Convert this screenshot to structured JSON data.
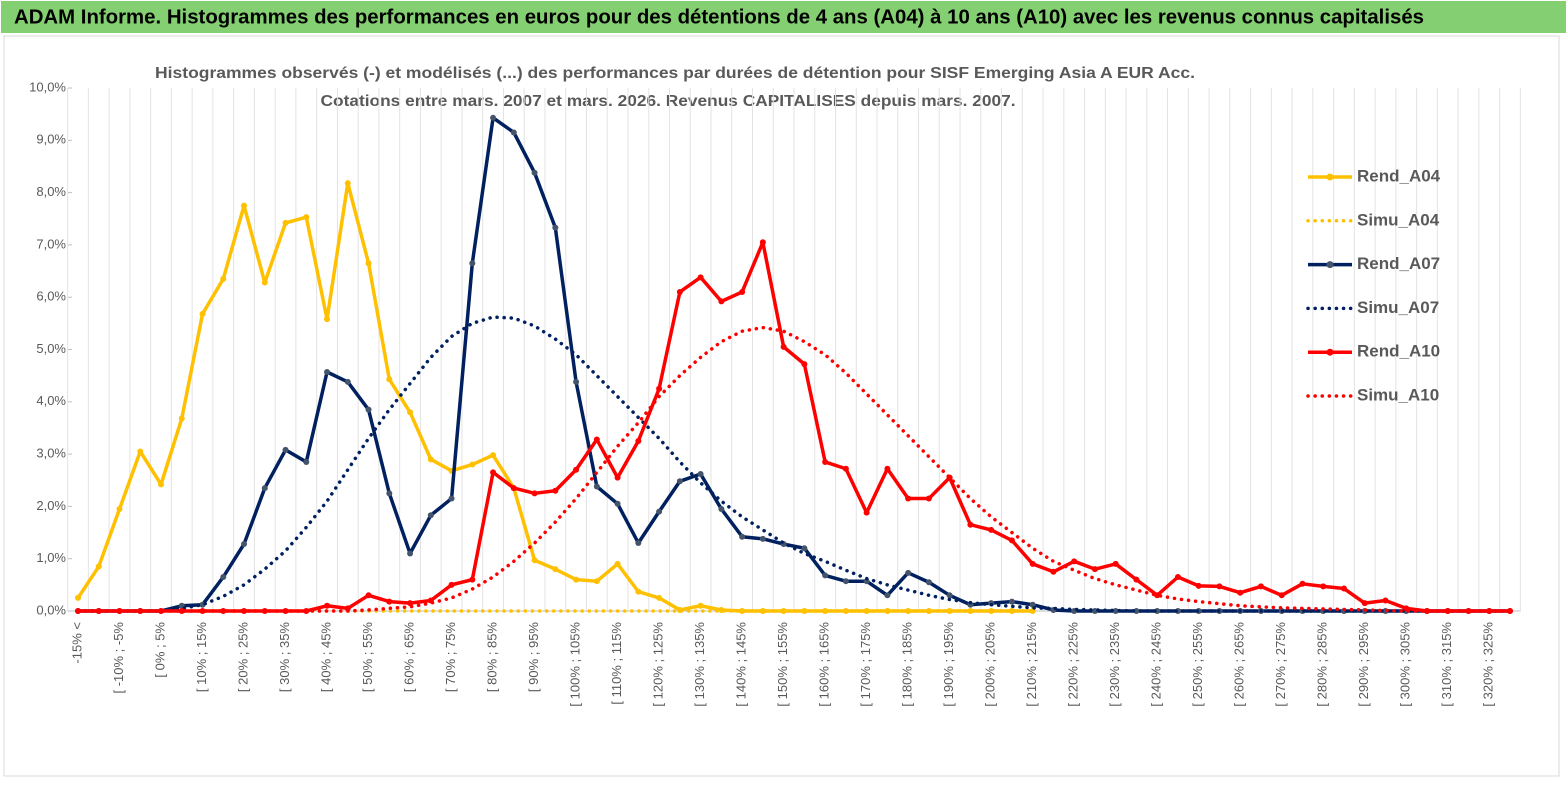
{
  "chart_data": {
    "type": "line",
    "title": "ADAM Informe. Histogrammes des performances en euros pour des détentions de 4 ans (A04) à 10 ans (A10) avec les revenus connus capitalisés",
    "subtitle": [
      "Histogrammes observés (-) et modélisés (...) des performances par durées de détention pour SISF Emerging Asia A EUR Acc.",
      "Cotations entre mars. 2007 et mars. 2026. Revenus CAPITALISES depuis mars. 2007."
    ],
    "categories": [
      "-15% <",
      null,
      "[ -10% ; -5%",
      null,
      "[ 0% ; 5%",
      null,
      "[ 10% ; 15%",
      null,
      "[ 20% ; 25%",
      null,
      "[ 30% ; 35%",
      null,
      "[ 40% ; 45%",
      null,
      "[ 50% ; 55%",
      null,
      "[ 60% ; 65%",
      null,
      "[ 70% ; 75%",
      null,
      "[ 80% ; 85%",
      null,
      "[ 90% ; 95%",
      null,
      "[ 100% ; 105%",
      null,
      "[ 110% ; 115%",
      null,
      "[ 120% ; 125%",
      null,
      "[ 130% ; 135%",
      null,
      "[ 140% ; 145%",
      null,
      "[ 150% ; 155%",
      null,
      "[ 160% ; 165%",
      null,
      "[ 170% ; 175%",
      null,
      "[ 180% ; 185%",
      null,
      "[ 190% ; 195%",
      null,
      "[ 200% ; 205%",
      null,
      "[ 210% ; 215%",
      null,
      "[ 220% ; 225%",
      null,
      "[ 230% ; 235%",
      null,
      "[ 240% ; 245%",
      null,
      "[ 250% ; 255%",
      null,
      "[ 260% ; 265%",
      null,
      "[ 270% ; 275%",
      null,
      "[ 280% ; 285%",
      null,
      "[ 290% ; 295%",
      null,
      "[ 300% ; 305%",
      null,
      "[ 310% ; 315%",
      null,
      "[ 320% ; 325%",
      null
    ],
    "ylim": [
      0,
      10
    ],
    "yticks": [
      {
        "value": 0,
        "label": "0,0%"
      },
      {
        "value": 1,
        "label": "1,0%"
      },
      {
        "value": 2,
        "label": "2,0%"
      },
      {
        "value": 3,
        "label": "3,0%"
      },
      {
        "value": 4,
        "label": "4,0%"
      },
      {
        "value": 5,
        "label": "5,0%"
      },
      {
        "value": 6,
        "label": "6,0%"
      },
      {
        "value": 7,
        "label": "7,0%"
      },
      {
        "value": 8,
        "label": "8,0%"
      },
      {
        "value": 9,
        "label": "9,0%"
      },
      {
        "value": 10,
        "label": "10,0%"
      }
    ],
    "x_grid": true,
    "legend": "right",
    "series": [
      {
        "name": "Rend_A04",
        "color": "#ffc000",
        "marker": true,
        "dash": "solid",
        "values": [
          0.25,
          0.85,
          1.95,
          3.05,
          2.42,
          3.68,
          5.68,
          6.35,
          7.75,
          6.28,
          7.42,
          7.53,
          5.58,
          8.18,
          6.65,
          4.43,
          3.8,
          2.9,
          2.68,
          2.8,
          2.98,
          2.35,
          0.97,
          0.8,
          0.6,
          0.57,
          0.9,
          0.37,
          0.25,
          0.02,
          0.1,
          0.02,
          0,
          0,
          0,
          0,
          0,
          0,
          0,
          0,
          0,
          0,
          0,
          0,
          0,
          0,
          0,
          null,
          null,
          null,
          null,
          null,
          null,
          null,
          null,
          null,
          null,
          null,
          null,
          null,
          null,
          null,
          null,
          null,
          null,
          null,
          null,
          null,
          null,
          null
        ]
      },
      {
        "name": "Simu_A04",
        "color": "#ffc000",
        "marker": false,
        "dash": "dot",
        "values": [
          0,
          0,
          0,
          0,
          0,
          0,
          0,
          0,
          0,
          0,
          0,
          0,
          0,
          0,
          0,
          0,
          0,
          0,
          0,
          0,
          0,
          0,
          0,
          0,
          0,
          0,
          0,
          0,
          0,
          0,
          0,
          0,
          0,
          0,
          0,
          0,
          0,
          0,
          0,
          0,
          0,
          0,
          0,
          0,
          0,
          0,
          0,
          null,
          null,
          null,
          null,
          null,
          null,
          null,
          null,
          null,
          null,
          null,
          null,
          null,
          null,
          null,
          null,
          null,
          null,
          null,
          null,
          null,
          null,
          null
        ]
      },
      {
        "name": "Rend_A07",
        "color": "#002060",
        "marker": true,
        "marker_color": "#44546a",
        "dash": "solid",
        "values": [
          0,
          0,
          0,
          0,
          0,
          0.1,
          0.12,
          0.65,
          1.28,
          2.35,
          3.08,
          2.85,
          4.57,
          4.38,
          3.85,
          2.25,
          1.1,
          1.83,
          2.15,
          6.65,
          9.43,
          9.15,
          8.38,
          7.33,
          4.38,
          2.38,
          2.05,
          1.3,
          1.9,
          2.48,
          2.62,
          1.95,
          1.42,
          1.38,
          1.28,
          1.2,
          0.68,
          0.57,
          0.57,
          0.3,
          0.73,
          0.55,
          0.3,
          0.12,
          0.15,
          0.18,
          0.12,
          0.02,
          0,
          0,
          0,
          0,
          0,
          0,
          0,
          0,
          0,
          0,
          0,
          0,
          0,
          0,
          0,
          0,
          0,
          0,
          0,
          0,
          0,
          0
        ]
      },
      {
        "name": "Simu_A07",
        "color": "#002060",
        "marker": false,
        "dash": "dot",
        "values": [
          0,
          0,
          0,
          0,
          0,
          0.05,
          0.12,
          0.28,
          0.5,
          0.8,
          1.15,
          1.6,
          2.1,
          2.7,
          3.3,
          3.85,
          4.35,
          4.85,
          5.25,
          5.5,
          5.62,
          5.6,
          5.45,
          5.2,
          4.9,
          4.5,
          4.1,
          3.7,
          3.3,
          2.85,
          2.45,
          2.1,
          1.8,
          1.55,
          1.3,
          1.1,
          0.95,
          0.78,
          0.62,
          0.5,
          0.4,
          0.3,
          0.22,
          0.16,
          0.12,
          0.09,
          0.06,
          0.05,
          0.03,
          0.02,
          0.01,
          0,
          0,
          0,
          0,
          0,
          0,
          0,
          0,
          0,
          0,
          0,
          0,
          0,
          0,
          0,
          0,
          0,
          0,
          0
        ]
      },
      {
        "name": "Rend_A10",
        "color": "#ff0000",
        "marker": true,
        "dash": "solid",
        "values": [
          0,
          0,
          0,
          0,
          0,
          0,
          0,
          0,
          0,
          0,
          0,
          0,
          0.1,
          0.05,
          0.3,
          0.18,
          0.15,
          0.2,
          0.5,
          0.6,
          2.65,
          2.35,
          2.25,
          2.3,
          2.7,
          3.28,
          2.55,
          3.25,
          4.25,
          6.1,
          6.38,
          5.92,
          6.1,
          7.05,
          5.05,
          4.72,
          2.85,
          2.72,
          1.88,
          2.72,
          2.15,
          2.15,
          2.55,
          1.65,
          1.55,
          1.35,
          0.9,
          0.75,
          0.95,
          0.8,
          0.9,
          0.6,
          0.3,
          0.65,
          0.48,
          0.47,
          0.35,
          0.47,
          0.3,
          0.52,
          0.47,
          0.43,
          0.15,
          0.2,
          0.05,
          0,
          0,
          0,
          0,
          0
        ]
      },
      {
        "name": "Simu_A10",
        "color": "#ff0000",
        "marker": false,
        "dash": "dot",
        "values": [
          0,
          0,
          0,
          0,
          0,
          0,
          0,
          0,
          0,
          0,
          0,
          0,
          0,
          0,
          0.02,
          0.05,
          0.08,
          0.15,
          0.25,
          0.42,
          0.65,
          0.95,
          1.3,
          1.7,
          2.15,
          2.65,
          3.15,
          3.6,
          4.1,
          4.5,
          4.85,
          5.15,
          5.35,
          5.42,
          5.35,
          5.15,
          4.9,
          4.55,
          4.15,
          3.75,
          3.35,
          2.95,
          2.55,
          2.15,
          1.8,
          1.5,
          1.2,
          0.95,
          0.78,
          0.62,
          0.5,
          0.4,
          0.3,
          0.23,
          0.18,
          0.14,
          0.1,
          0.08,
          0.06,
          0.05,
          0.04,
          0.03,
          0.02,
          0.01,
          0,
          0,
          0,
          0,
          0,
          0
        ]
      }
    ]
  }
}
